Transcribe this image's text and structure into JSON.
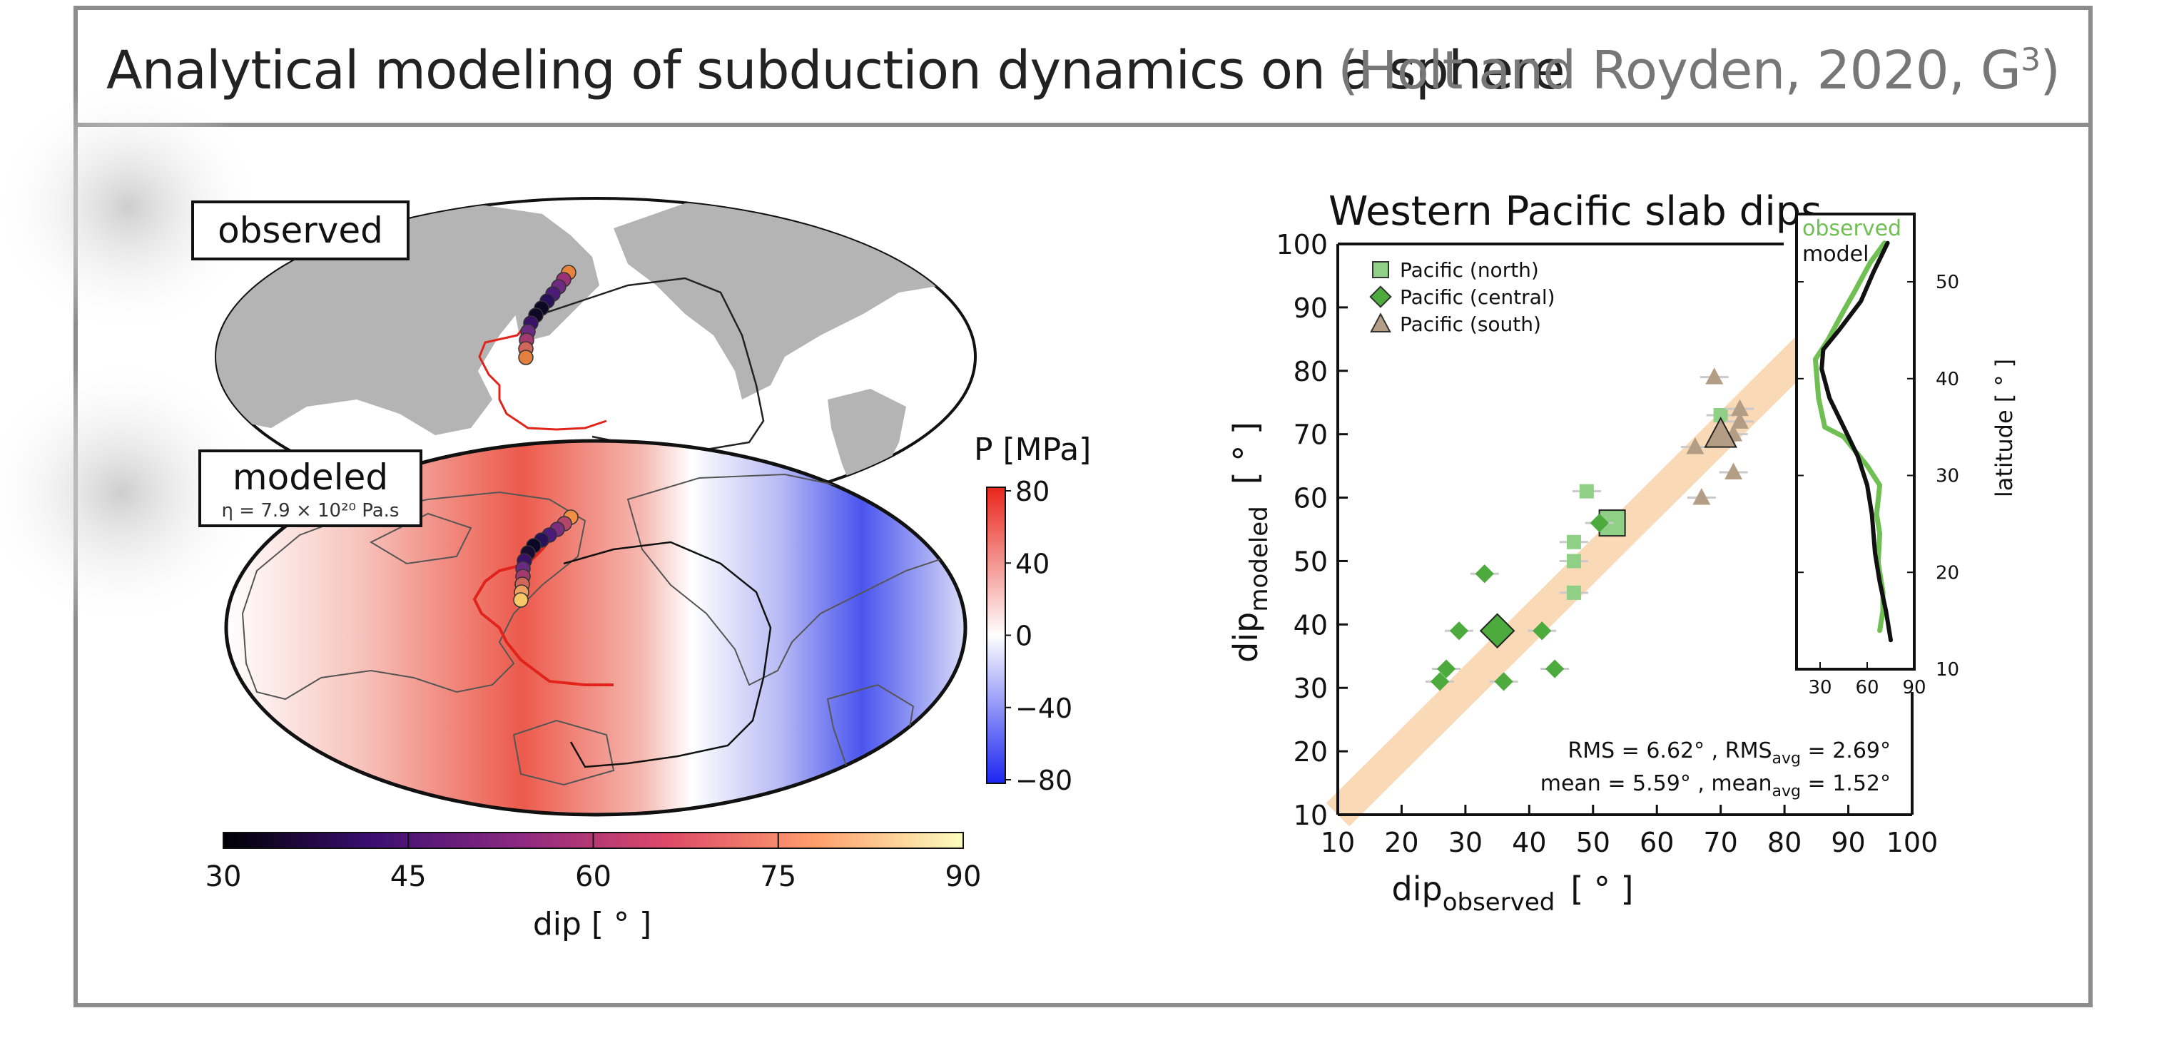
{
  "header": {
    "title": "Analytical modeling of subduction dynamics on a sphere",
    "citation": "(Holt and Royden, 2020, G",
    "citation_sup": "3",
    "citation_end": ")"
  },
  "maps": {
    "observed_label": "observed",
    "modeled_label": "modeled",
    "viscosity_label": "η = 7.9 × 10²⁰ Pa.s",
    "pressure_colorbar": {
      "title": "P  [MPa]",
      "ticks": [
        "80",
        "40",
        "0",
        "−40",
        "−80"
      ],
      "colors": {
        "high": "#e8261c",
        "mid": "#ffffff",
        "low": "#1b25f0"
      }
    },
    "dip_colorbar": {
      "label": "dip [ ° ]",
      "ticks": [
        "30",
        "45",
        "60",
        "75",
        "90"
      ],
      "colors": [
        "#000004",
        "#3b0f70",
        "#8c2981",
        "#de4968",
        "#fe9f6d",
        "#fcfdbf"
      ]
    },
    "colors": {
      "land": "#b4b4b4",
      "trench": "#e0241b",
      "plate_boundary": "#222222"
    }
  },
  "chart_data": [
    {
      "type": "scatter",
      "title": "Western Pacific slab dips",
      "xlabel": "dip",
      "xlabel_sub": "observed",
      "xlabel_unit": "[ ° ]",
      "ylabel": "dip",
      "ylabel_sub": "modeled",
      "ylabel_unit": "[ ° ]",
      "xlim": [
        10,
        100
      ],
      "ylim": [
        10,
        100
      ],
      "xticks": [
        10,
        20,
        30,
        40,
        50,
        60,
        70,
        80,
        90,
        100
      ],
      "yticks": [
        10,
        20,
        30,
        40,
        50,
        60,
        70,
        80,
        90,
        100
      ],
      "grid": false,
      "legend_position": "top-left",
      "one_to_one_band": {
        "color": "#f9d9b6"
      },
      "series": [
        {
          "name": "Pacific (north)",
          "marker": "square",
          "color": "#8fcf86",
          "points": [
            [
              47,
              45
            ],
            [
              47,
              50
            ],
            [
              47,
              53
            ],
            [
              49,
              61
            ],
            [
              70,
              73
            ],
            [
              52,
              56
            ]
          ],
          "average": [
            53,
            56
          ]
        },
        {
          "name": "Pacific (central)",
          "marker": "diamond",
          "color": "#4daa3c",
          "points": [
            [
              26,
              31
            ],
            [
              27,
              33
            ],
            [
              29,
              39
            ],
            [
              33,
              48
            ],
            [
              36,
              31
            ],
            [
              42,
              39
            ],
            [
              44,
              33
            ],
            [
              51,
              56
            ]
          ],
          "average": [
            35,
            39
          ]
        },
        {
          "name": "Pacific (south)",
          "marker": "triangle",
          "color": "#b49d85",
          "points": [
            [
              66,
              68
            ],
            [
              67,
              60
            ],
            [
              69,
              79
            ],
            [
              72,
              70
            ],
            [
              72,
              64
            ],
            [
              73,
              74
            ],
            [
              73,
              72
            ]
          ],
          "average": [
            70,
            70
          ]
        }
      ],
      "annotations": [
        {
          "text": "RMS = 6.62° ,  RMS",
          "sub": "avg",
          "text2": " = 2.69°"
        },
        {
          "text": "mean = 5.59° ,  mean",
          "sub": "avg",
          "text2": " = 1.52°"
        }
      ]
    },
    {
      "type": "line",
      "ylabel": "latitude  [ ° ]",
      "xlim": [
        15,
        90
      ],
      "ylim": [
        10,
        57
      ],
      "xticks": [
        30,
        60,
        90
      ],
      "yticks": [
        10,
        20,
        30,
        40,
        50
      ],
      "legend_position": "top-left",
      "series": [
        {
          "name": "observed",
          "color": "#6fbf52",
          "points": [
            [
              71,
              54
            ],
            [
              62,
              52
            ],
            [
              52,
              49
            ],
            [
              45,
              47
            ],
            [
              35,
              44
            ],
            [
              27,
              42
            ],
            [
              29,
              38
            ],
            [
              33,
              35
            ],
            [
              45,
              34
            ],
            [
              60,
              31
            ],
            [
              68,
              29
            ],
            [
              66,
              26
            ],
            [
              68,
              24
            ],
            [
              67,
              21
            ],
            [
              70,
              18
            ],
            [
              70,
              16
            ],
            [
              68,
              14
            ]
          ]
        },
        {
          "name": "model",
          "color": "#111111",
          "points": [
            [
              73,
              54
            ],
            [
              64,
              51
            ],
            [
              56,
              48
            ],
            [
              42,
              45
            ],
            [
              32,
              43
            ],
            [
              31,
              41
            ],
            [
              36,
              38
            ],
            [
              45,
              35
            ],
            [
              54,
              32
            ],
            [
              60,
              29
            ],
            [
              63,
              26
            ],
            [
              65,
              22
            ],
            [
              68,
              19
            ],
            [
              72,
              16
            ],
            [
              75,
              13
            ]
          ]
        }
      ]
    }
  ]
}
